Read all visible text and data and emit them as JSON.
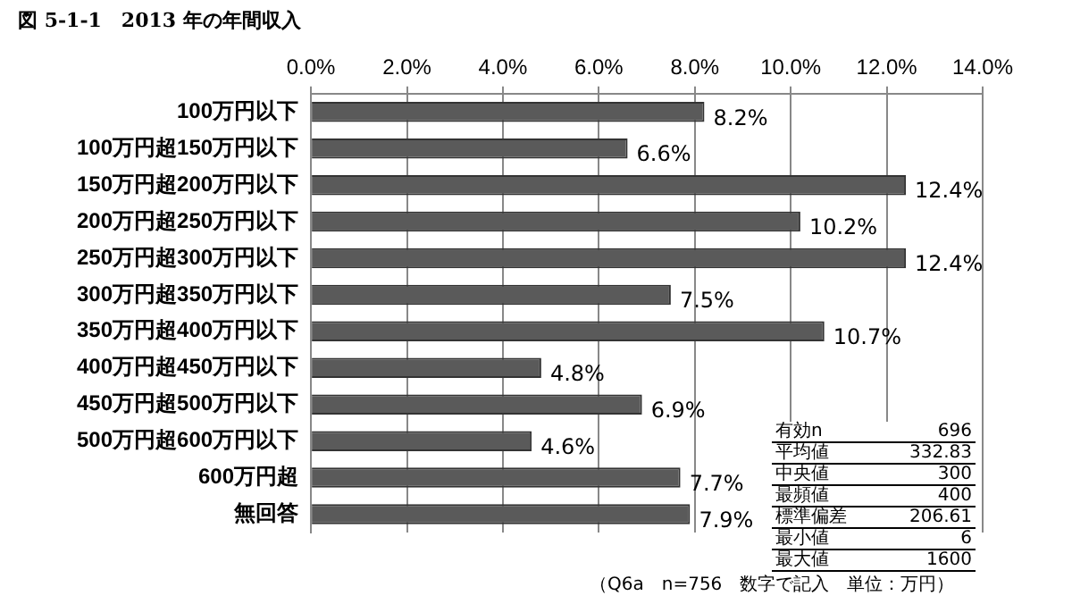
{
  "chart_data": {
    "type": "bar",
    "orientation": "horizontal",
    "title": "図 5-1-1　2013 年の年間収入",
    "categories": [
      "100万円以下",
      "100万円超150万円以下",
      "150万円超200万円以下",
      "200万円超250万円以下",
      "250万円超300万円以下",
      "300万円超350万円以下",
      "350万円超400万円以下",
      "400万円超450万円以下",
      "450万円超500万円以下",
      "500万円超600万円以下",
      "600万円超",
      "無回答"
    ],
    "values": [
      8.2,
      6.6,
      12.4,
      10.2,
      12.4,
      7.5,
      10.7,
      4.8,
      6.9,
      4.6,
      7.7,
      7.9
    ],
    "value_labels": [
      "8.2%",
      "6.6%",
      "12.4%",
      "10.2%",
      "12.4%",
      "7.5%",
      "10.7%",
      "4.8%",
      "6.9%",
      "4.6%",
      "7.7%",
      "7.9%"
    ],
    "color": "#5a5a5a",
    "xlim": [
      0,
      14
    ],
    "xticks": [
      {
        "value": 0,
        "label": "0.0%"
      },
      {
        "value": 2,
        "label": "2.0%"
      },
      {
        "value": 4,
        "label": "4.0%"
      },
      {
        "value": 6,
        "label": "6.0%"
      },
      {
        "value": 8,
        "label": "8.0%"
      },
      {
        "value": 10,
        "label": "10.0%"
      },
      {
        "value": 12,
        "label": "12.0%"
      },
      {
        "value": 14,
        "label": "14.0%"
      }
    ],
    "grid": "x",
    "annotations": [
      "有効n 696",
      "平均値 332.83",
      "中央値 300",
      "最頻値 400",
      "標準偏差 206.61",
      "最小値 6",
      "最大値 1600",
      "（Q6a　n=756　数字で記入　単位：万円）"
    ]
  }
}
